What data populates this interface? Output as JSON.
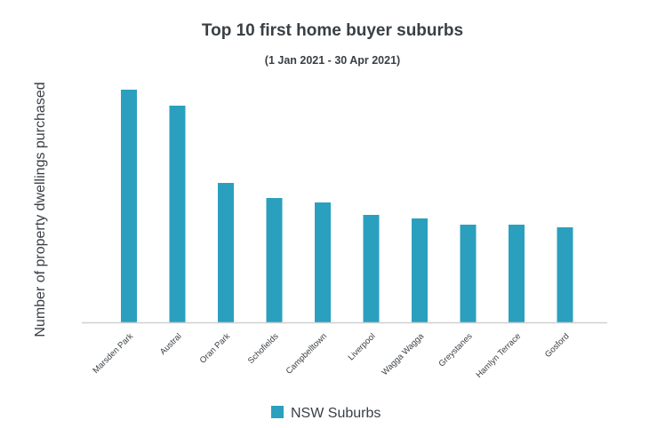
{
  "chart_data": {
    "type": "bar",
    "title": "Top 10 first home buyer suburbs",
    "subtitle": "(1 Jan 2021 - 30 Apr 2021)",
    "xlabel": "",
    "ylabel": "Number of property dwellings purchased",
    "categories": [
      "Marsden Park",
      "Austral",
      "Oran Park",
      "Schofields",
      "Campbelltown",
      "Liverpool",
      "Wagga Wagga",
      "Greystanes",
      "Hamlyn Terrace",
      "Gosford"
    ],
    "series": [
      {
        "name": "NSW Suburbs",
        "values": [
          262,
          244,
          157,
          140,
          135,
          121,
          117,
          110,
          110,
          107
        ]
      }
    ],
    "ylim": [
      0,
      270
    ],
    "grid": false,
    "legend": "bottom-center",
    "colors": {
      "bar": "#2aa0be",
      "axis": "#cfcfcf"
    }
  }
}
